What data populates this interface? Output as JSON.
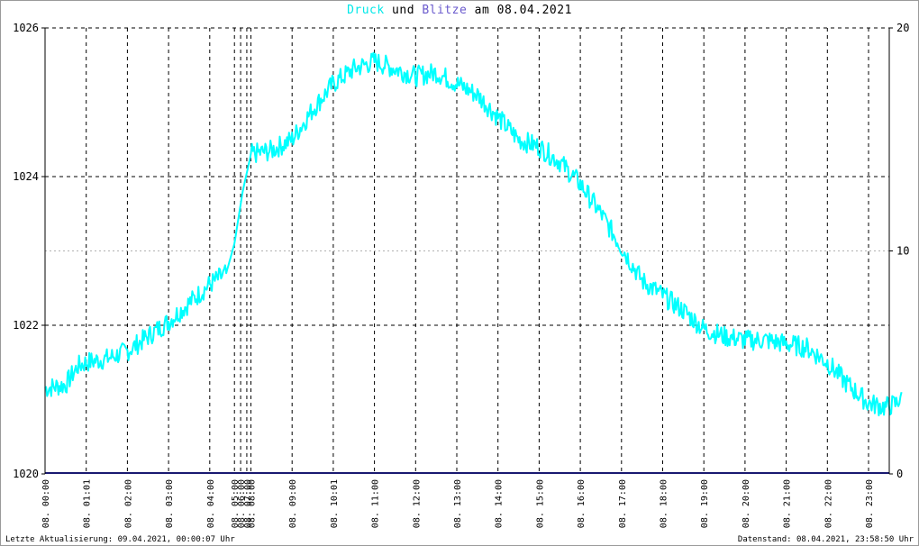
{
  "title": {
    "druck": "Druck",
    "und": "und",
    "blitze": "Blitze",
    "am": "am",
    "date": "08.04.2021"
  },
  "footer": {
    "left": "Letzte Aktualisierung: 09.04.2021, 00:00:07 Uhr",
    "right": "Datenstand: 08.04.2021, 23:58:50 Uhr"
  },
  "colors": {
    "pressure": "#00ffff",
    "lightning": "#191970",
    "title_druck": "#00e8e8",
    "title_blitze": "#6a5acd",
    "grid": "#000000"
  },
  "chart_data": {
    "type": "line",
    "left_axis": {
      "ylim": [
        1020,
        1026
      ],
      "ticks": [
        1020,
        1022,
        1024,
        1026
      ]
    },
    "right_axis": {
      "ylim": [
        0,
        20
      ],
      "ticks": [
        0,
        10,
        20
      ]
    },
    "x_range_hours": [
      0,
      24
    ],
    "x_ticks": [
      {
        "hour": 0.0,
        "label": "08. 00:00"
      },
      {
        "hour": 1.0,
        "label": "08. 01:01"
      },
      {
        "hour": 2.0,
        "label": "08. 02:00"
      },
      {
        "hour": 3.0,
        "label": "08. 03:00"
      },
      {
        "hour": 4.0,
        "label": "08. 04:00"
      },
      {
        "hour": 4.6,
        "label": "08. 05:00"
      },
      {
        "hour": 4.75,
        "label": "08. 06:00"
      },
      {
        "hour": 4.9,
        "label": "08. 07:00"
      },
      {
        "hour": 5.0,
        "label": "08. 08:00"
      },
      {
        "hour": 6.0,
        "label": "08. 09:00"
      },
      {
        "hour": 7.0,
        "label": "08. 10:01"
      },
      {
        "hour": 8.0,
        "label": "08. 11:00"
      },
      {
        "hour": 9.0,
        "label": "08. 12:00"
      },
      {
        "hour": 10.0,
        "label": "08. 13:00"
      },
      {
        "hour": 11.0,
        "label": "08. 14:00"
      },
      {
        "hour": 12.0,
        "label": "08. 15:00"
      },
      {
        "hour": 13.0,
        "label": "08. 16:00"
      },
      {
        "hour": 14.0,
        "label": "08. 17:00"
      },
      {
        "hour": 15.0,
        "label": "08. 18:00"
      },
      {
        "hour": 16.0,
        "label": "08. 19:00"
      },
      {
        "hour": 17.0,
        "label": "08. 20:00"
      },
      {
        "hour": 18.0,
        "label": "08. 21:00"
      },
      {
        "hour": 19.0,
        "label": "08. 22:00"
      },
      {
        "hour": 20.0,
        "label": "08. 23:00"
      }
    ],
    "series": [
      {
        "name": "Druck",
        "axis": "left",
        "color": "#00ffff",
        "x": [
          0.0,
          0.5,
          0.8,
          1.0,
          1.5,
          2.0,
          2.5,
          3.0,
          3.5,
          4.0,
          4.4,
          4.6,
          4.8,
          5.0,
          5.5,
          6.0,
          6.5,
          7.0,
          7.5,
          8.0,
          8.5,
          9.0,
          9.5,
          10.0,
          10.5,
          11.0,
          11.5,
          12.0,
          12.5,
          13.0,
          13.5,
          14.0,
          14.5,
          15.0,
          15.5,
          16.0,
          16.5,
          17.0,
          17.5,
          18.0,
          18.5,
          19.0,
          19.5,
          20.0,
          20.4,
          20.7,
          20.8
        ],
        "values": [
          1021.15,
          1021.2,
          1021.45,
          1021.5,
          1021.55,
          1021.65,
          1021.85,
          1022.05,
          1022.3,
          1022.55,
          1022.7,
          1023.1,
          1023.8,
          1024.3,
          1024.35,
          1024.5,
          1024.9,
          1025.25,
          1025.45,
          1025.55,
          1025.45,
          1025.35,
          1025.4,
          1025.25,
          1025.1,
          1024.8,
          1024.5,
          1024.4,
          1024.2,
          1023.9,
          1023.5,
          1023.05,
          1022.6,
          1022.4,
          1022.2,
          1021.95,
          1021.85,
          1021.8,
          1021.8,
          1021.75,
          1021.7,
          1021.5,
          1021.2,
          1020.95,
          1020.9,
          1020.95,
          1021.1
        ]
      },
      {
        "name": "Blitze",
        "axis": "right",
        "color": "#191970",
        "x": [
          0,
          21
        ],
        "values": [
          0,
          0
        ]
      }
    ]
  }
}
